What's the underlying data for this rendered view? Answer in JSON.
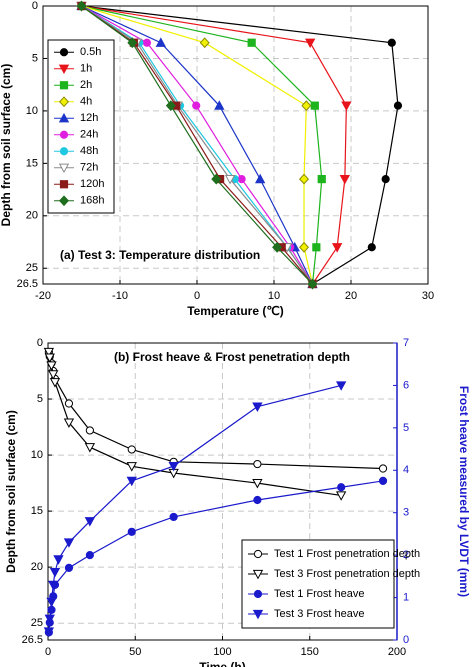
{
  "chart_data": [
    {
      "type": "line",
      "annotation": "(a) Test 3: Temperature distribution",
      "xlabel": "Temperature (℃)",
      "ylabel": "Depth from soil surface (cm)",
      "xlim": [
        -20,
        30
      ],
      "xticks": [
        -20,
        -10,
        0,
        10,
        20,
        30
      ],
      "ylim": [
        0,
        26.5
      ],
      "yticks": [
        0,
        5,
        10,
        15,
        20,
        25,
        26.5
      ],
      "y_inverted": true,
      "grid": true,
      "legend": "upper left",
      "series": [
        {
          "name": "0.5h",
          "color": "#000000",
          "marker": "circle",
          "x": [
            -15,
            25.3,
            26.1,
            24.5,
            22.7,
            15
          ],
          "values": [
            0,
            3.5,
            9.5,
            16.5,
            23,
            26.5
          ]
        },
        {
          "name": "1h",
          "color": "#e8141b",
          "marker": "triangle-down",
          "x": [
            -15,
            14.7,
            19.4,
            19.2,
            18.2,
            15
          ],
          "values": [
            0,
            3.5,
            9.5,
            16.5,
            23,
            26.5
          ]
        },
        {
          "name": "2h",
          "color": "#1db41d",
          "marker": "square",
          "x": [
            -15,
            7.1,
            15.3,
            16.2,
            15.5,
            15
          ],
          "values": [
            0,
            3.5,
            9.5,
            16.5,
            23,
            26.5
          ]
        },
        {
          "name": "4h",
          "color": "#f0f000",
          "marker": "diamond",
          "x": [
            -15,
            1.0,
            14.2,
            13.9,
            13.9,
            15
          ],
          "values": [
            0,
            3.5,
            9.5,
            16.5,
            23,
            26.5
          ]
        },
        {
          "name": "12h",
          "color": "#1c35c8",
          "marker": "triangle-up",
          "x": [
            -15,
            -4.7,
            2.9,
            8.2,
            12.7,
            15
          ],
          "values": [
            0,
            3.5,
            9.5,
            16.5,
            23,
            26.5
          ]
        },
        {
          "name": "24h",
          "color": "#e01ee0",
          "marker": "circle",
          "x": [
            -15,
            -6.5,
            -0.1,
            5.8,
            12.1,
            15
          ],
          "values": [
            0,
            3.5,
            9.5,
            16.5,
            23,
            26.5
          ]
        },
        {
          "name": "48h",
          "color": "#1ec8e0",
          "marker": "circle",
          "x": [
            -15,
            -7.5,
            -2.2,
            4.9,
            11.7,
            15
          ],
          "values": [
            0,
            3.5,
            9.5,
            16.5,
            23,
            26.5
          ]
        },
        {
          "name": "72h",
          "color": "#8a8a8a",
          "marker": "triangle-down",
          "marker_fill": "#ffffff",
          "x": [
            -15,
            -7.8,
            -2.5,
            4.3,
            11.7,
            15
          ],
          "values": [
            0,
            3.5,
            9.5,
            16.5,
            23,
            26.5
          ]
        },
        {
          "name": "120h",
          "color": "#8b1a1a",
          "marker": "square",
          "x": [
            -15,
            -8.2,
            -2.7,
            3.0,
            11.0,
            15
          ],
          "values": [
            0,
            3.5,
            9.5,
            16.5,
            23,
            26.5
          ]
        },
        {
          "name": "168h",
          "color": "#1e6e1e",
          "marker": "diamond",
          "x": [
            -15,
            -8.4,
            -3.4,
            2.5,
            10.4,
            15
          ],
          "values": [
            0,
            3.5,
            9.5,
            16.5,
            23,
            26.5
          ]
        }
      ]
    },
    {
      "type": "line",
      "annotation": "(b) Frost heave & Frost penetration depth",
      "xlabel": "Time (h)",
      "ylabel": "Depth from soil surface (cm)",
      "y2label": "Frost heave measured by LVDT (mm)",
      "xlim": [
        0,
        200
      ],
      "xticks": [
        0,
        50,
        100,
        150,
        200
      ],
      "ylim": [
        0,
        26.5
      ],
      "yticks": [
        0,
        5,
        10,
        15,
        20,
        25,
        26.5
      ],
      "y_inverted": true,
      "y2lim": [
        0,
        7
      ],
      "y2ticks": [
        0,
        1,
        2,
        3,
        4,
        5,
        6,
        7
      ],
      "y2color": "#1a1acc",
      "grid": true,
      "legend": "lower right",
      "series": [
        {
          "name": "Test 1 Frost penetration depth",
          "color": "#000000",
          "marker": "circle",
          "marker_fill": "#ffffff",
          "x": [
            0.5,
            1,
            2,
            3,
            4,
            12,
            24,
            48,
            72,
            120,
            192
          ],
          "values": [
            0.8,
            1.2,
            1.8,
            2.5,
            3.2,
            5.4,
            7.8,
            9.5,
            10.6,
            10.8,
            11.2
          ]
        },
        {
          "name": "Test 3 Frost penetration depth",
          "color": "#000000",
          "marker": "triangle-down",
          "marker_fill": "#ffffff",
          "x": [
            0.5,
            1,
            2,
            3,
            4,
            12,
            24,
            48,
            72,
            120,
            168
          ],
          "values": [
            0.8,
            1.3,
            2,
            2.8,
            3.5,
            7.1,
            9.3,
            11.0,
            11.6,
            12.5,
            13.6
          ]
        },
        {
          "name": "Test 1 Frost heave",
          "color": "#1a1acc",
          "marker": "circle",
          "axis": "y2",
          "x": [
            0.5,
            1,
            2,
            3,
            4,
            12,
            24,
            48,
            72,
            120,
            168,
            192
          ],
          "values": [
            0.18,
            0.41,
            0.71,
            1.03,
            1.3,
            1.7,
            2.0,
            2.55,
            2.9,
            3.3,
            3.6,
            3.75
          ]
        },
        {
          "name": "Test 3 Frost heave",
          "color": "#1a1acc",
          "marker": "triangle-down",
          "axis": "y2",
          "x": [
            0.5,
            1,
            2,
            3,
            4,
            6,
            12,
            24,
            48,
            72,
            120,
            168
          ],
          "values": [
            0.2,
            0.5,
            0.9,
            1.3,
            1.6,
            1.9,
            2.3,
            2.8,
            3.75,
            4.1,
            5.5,
            6.0
          ]
        }
      ]
    }
  ]
}
